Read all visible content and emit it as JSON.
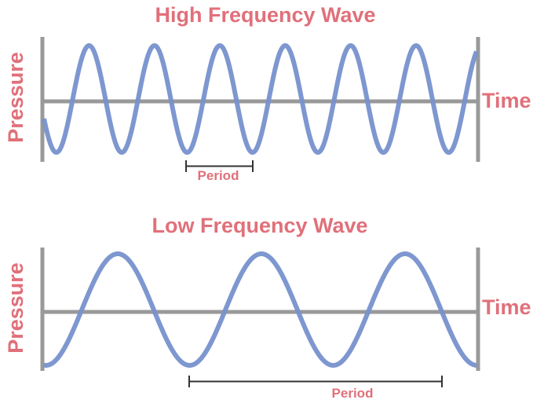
{
  "colors": {
    "text": "#e0707a",
    "wave": "#7791cd",
    "axis": "#999999",
    "bracket": "#333333"
  },
  "panels": [
    {
      "title": "High Frequency Wave",
      "y_label": "Pressure",
      "x_label": "Time",
      "period_label": "Period",
      "frequency": "high"
    },
    {
      "title": "Low Frequency Wave",
      "y_label": "Pressure",
      "x_label": "Time",
      "period_label": "Period",
      "frequency": "low"
    }
  ]
}
